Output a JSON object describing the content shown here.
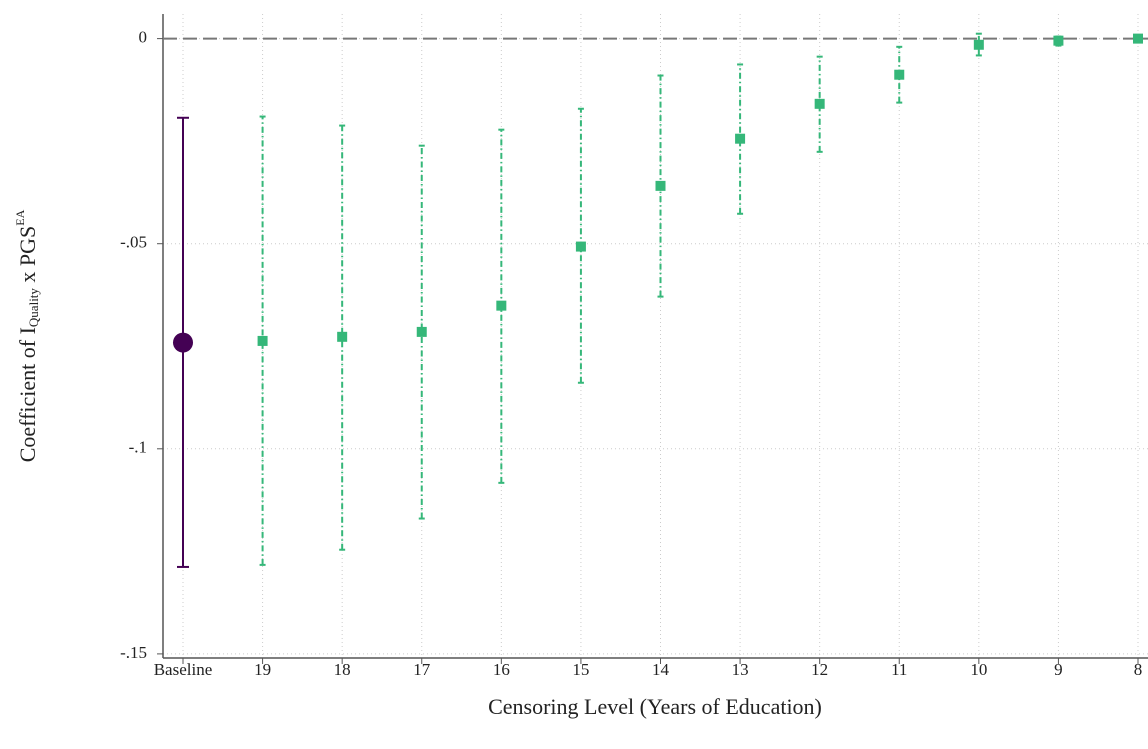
{
  "chart_data": {
    "type": "errorbar",
    "xlabel": "Censoring Level (Years of Education)",
    "ylabel": [
      "Coefficient of I",
      "Quality",
      " x PGS",
      "EA"
    ],
    "categories": [
      "Baseline",
      "19",
      "18",
      "17",
      "16",
      "15",
      "14",
      "13",
      "12",
      "11",
      "10",
      "9",
      "8"
    ],
    "ylim": [
      -0.151,
      0.006
    ],
    "yticks": [
      0,
      {
        "value": -0.05,
        "label": "-.05"
      },
      {
        "value": -0.1,
        "label": "-.1"
      },
      {
        "value": -0.15,
        "label": "-.15"
      }
    ],
    "grid": true,
    "reference_line": 0,
    "series": [
      {
        "color": "#440154",
        "marker": "circle",
        "line": "solid",
        "values": [
          -0.0741,
          null,
          null,
          null,
          null,
          null,
          null,
          null,
          null,
          null,
          null,
          null,
          null
        ],
        "lower": [
          -0.1288,
          null,
          null,
          null,
          null,
          null,
          null,
          null,
          null,
          null,
          null,
          null,
          null
        ],
        "upper": [
          -0.0193,
          null,
          null,
          null,
          null,
          null,
          null,
          null,
          null,
          null,
          null,
          null,
          null
        ]
      },
      {
        "color": "#35b779",
        "marker": "square",
        "line": "dashdot",
        "values": [
          null,
          -0.0737,
          -0.0727,
          -0.0715,
          -0.0651,
          -0.0507,
          -0.0359,
          -0.0244,
          -0.0159,
          -0.0088,
          -0.0015,
          -0.0005,
          0
        ],
        "lower": [
          null,
          -0.1283,
          -0.1246,
          -0.117,
          -0.1083,
          -0.0839,
          -0.0629,
          -0.0427,
          -0.0276,
          -0.0156,
          -0.0041,
          -0.0017,
          0
        ],
        "upper": [
          null,
          -0.019,
          -0.0212,
          -0.0261,
          -0.0222,
          -0.0171,
          -0.009,
          -0.0063,
          -0.0044,
          -0.002,
          0.0012,
          0.0005,
          0
        ]
      }
    ]
  }
}
